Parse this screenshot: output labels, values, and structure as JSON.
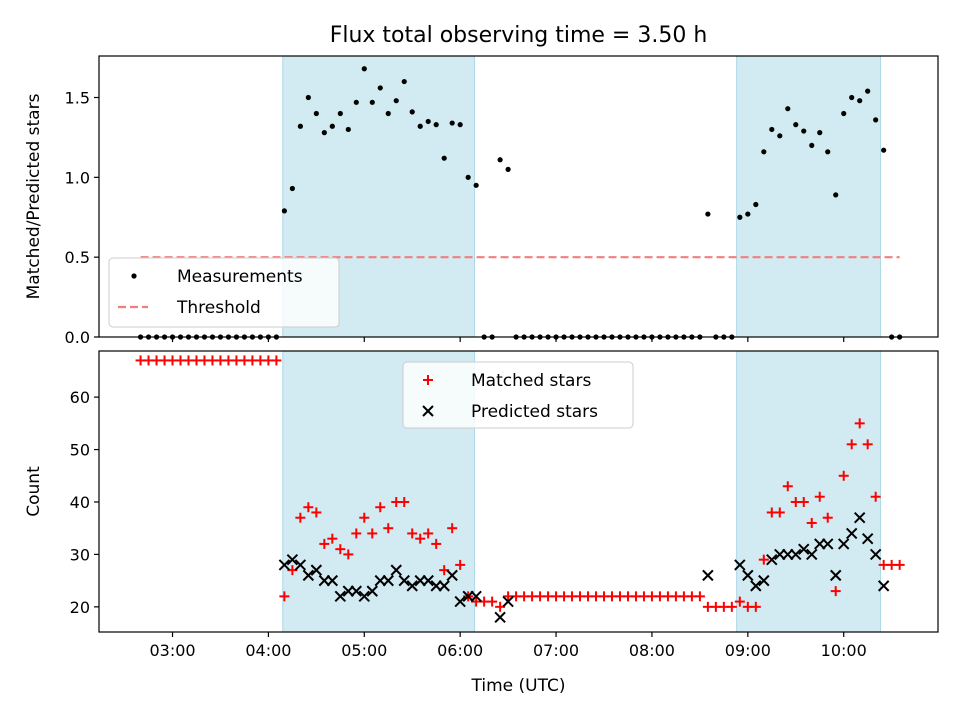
{
  "title": "Flux total observing time = 3.50 h",
  "chart_data": [
    {
      "type": "scatter",
      "title": "Flux total observing time = 3.50 h",
      "ylabel": "Matched/Predicted stars",
      "xlabel": "",
      "xlim": [
        "02:14",
        "10:59"
      ],
      "ylim": [
        0,
        1.76
      ],
      "yticks": [
        0.0,
        0.5,
        1.0,
        1.5
      ],
      "ytick_labels": [
        "0.0",
        "0.5",
        "1.0",
        "1.5"
      ],
      "grid": false,
      "legend": {
        "position": "lower-left",
        "entries": [
          "Measurements",
          "Threshold"
        ]
      },
      "shaded_spans": [
        [
          "04:09",
          "06:09"
        ],
        [
          "08:53",
          "10:23"
        ]
      ],
      "threshold": {
        "name": "Threshold",
        "value": 0.5,
        "x_range": [
          "02:40",
          "10:35"
        ],
        "color": "#f08080",
        "style": "dashed"
      },
      "series": [
        {
          "name": "Measurements",
          "marker": "dot",
          "color": "#000000",
          "points": [
            [
              "02:40",
              0
            ],
            [
              "02:45",
              0
            ],
            [
              "02:50",
              0
            ],
            [
              "02:55",
              0
            ],
            [
              "03:00",
              0
            ],
            [
              "03:05",
              0
            ],
            [
              "03:10",
              0
            ],
            [
              "03:15",
              0
            ],
            [
              "03:20",
              0
            ],
            [
              "03:25",
              0
            ],
            [
              "03:30",
              0
            ],
            [
              "03:35",
              0
            ],
            [
              "03:40",
              0
            ],
            [
              "03:45",
              0
            ],
            [
              "03:50",
              0
            ],
            [
              "03:55",
              0
            ],
            [
              "04:00",
              0
            ],
            [
              "04:05",
              0
            ],
            [
              "04:10",
              0.79
            ],
            [
              "04:15",
              0.93
            ],
            [
              "04:20",
              1.32
            ],
            [
              "04:25",
              1.5
            ],
            [
              "04:30",
              1.4
            ],
            [
              "04:35",
              1.28
            ],
            [
              "04:40",
              1.32
            ],
            [
              "04:45",
              1.4
            ],
            [
              "04:50",
              1.3
            ],
            [
              "04:55",
              1.47
            ],
            [
              "05:00",
              1.68
            ],
            [
              "05:05",
              1.47
            ],
            [
              "05:10",
              1.56
            ],
            [
              "05:15",
              1.4
            ],
            [
              "05:20",
              1.48
            ],
            [
              "05:25",
              1.6
            ],
            [
              "05:30",
              1.41
            ],
            [
              "05:35",
              1.32
            ],
            [
              "05:40",
              1.35
            ],
            [
              "05:45",
              1.33
            ],
            [
              "05:50",
              1.12
            ],
            [
              "05:55",
              1.34
            ],
            [
              "06:00",
              1.33
            ],
            [
              "06:05",
              1.0
            ],
            [
              "06:10",
              0.95
            ],
            [
              "06:15",
              0
            ],
            [
              "06:20",
              0
            ],
            [
              "06:25",
              1.11
            ],
            [
              "06:30",
              1.05
            ],
            [
              "06:35",
              0
            ],
            [
              "06:40",
              0
            ],
            [
              "06:45",
              0
            ],
            [
              "06:50",
              0
            ],
            [
              "06:55",
              0
            ],
            [
              "07:00",
              0
            ],
            [
              "07:05",
              0
            ],
            [
              "07:10",
              0
            ],
            [
              "07:15",
              0
            ],
            [
              "07:20",
              0
            ],
            [
              "07:25",
              0
            ],
            [
              "07:30",
              0
            ],
            [
              "07:35",
              0
            ],
            [
              "07:40",
              0
            ],
            [
              "07:45",
              0
            ],
            [
              "07:50",
              0
            ],
            [
              "07:55",
              0
            ],
            [
              "08:00",
              0
            ],
            [
              "08:05",
              0
            ],
            [
              "08:10",
              0
            ],
            [
              "08:15",
              0
            ],
            [
              "08:20",
              0
            ],
            [
              "08:25",
              0
            ],
            [
              "08:30",
              0
            ],
            [
              "08:35",
              0.77
            ],
            [
              "08:40",
              0
            ],
            [
              "08:45",
              0
            ],
            [
              "08:50",
              0
            ],
            [
              "08:55",
              0.75
            ],
            [
              "09:00",
              0.77
            ],
            [
              "09:05",
              0.83
            ],
            [
              "09:10",
              1.16
            ],
            [
              "09:15",
              1.3
            ],
            [
              "09:20",
              1.26
            ],
            [
              "09:25",
              1.43
            ],
            [
              "09:30",
              1.33
            ],
            [
              "09:35",
              1.29
            ],
            [
              "09:40",
              1.2
            ],
            [
              "09:45",
              1.28
            ],
            [
              "09:50",
              1.16
            ],
            [
              "09:55",
              0.89
            ],
            [
              "10:00",
              1.4
            ],
            [
              "10:05",
              1.5
            ],
            [
              "10:10",
              1.48
            ],
            [
              "10:15",
              1.54
            ],
            [
              "10:20",
              1.36
            ],
            [
              "10:25",
              1.17
            ],
            [
              "10:30",
              0
            ],
            [
              "10:35",
              0
            ]
          ]
        }
      ],
      "colors": {
        "span": "#add8e6",
        "text": "#000000"
      }
    },
    {
      "type": "scatter",
      "title": "",
      "xlabel": "Time (UTC)",
      "ylabel": "Count",
      "xlim": [
        "02:14",
        "10:59"
      ],
      "ylim": [
        15.2,
        68.8
      ],
      "xticks": [
        "03:00",
        "04:00",
        "05:00",
        "06:00",
        "07:00",
        "08:00",
        "09:00",
        "10:00"
      ],
      "yticks": [
        20,
        30,
        40,
        50,
        60
      ],
      "ytick_labels": [
        "20",
        "30",
        "40",
        "50",
        "60"
      ],
      "grid": false,
      "legend": {
        "position": "upper-center",
        "entries": [
          "Matched stars",
          "Predicted stars"
        ]
      },
      "shaded_spans": [
        [
          "04:09",
          "06:09"
        ],
        [
          "08:53",
          "10:23"
        ]
      ],
      "series": [
        {
          "name": "Matched stars",
          "marker": "plus",
          "color": "#ff0000",
          "points": [
            [
              "02:40",
              67
            ],
            [
              "02:45",
              67
            ],
            [
              "02:50",
              67
            ],
            [
              "02:55",
              67
            ],
            [
              "03:00",
              67
            ],
            [
              "03:05",
              67
            ],
            [
              "03:10",
              67
            ],
            [
              "03:15",
              67
            ],
            [
              "03:20",
              67
            ],
            [
              "03:25",
              67
            ],
            [
              "03:30",
              67
            ],
            [
              "03:35",
              67
            ],
            [
              "03:40",
              67
            ],
            [
              "03:45",
              67
            ],
            [
              "03:50",
              67
            ],
            [
              "03:55",
              67
            ],
            [
              "04:00",
              67
            ],
            [
              "04:05",
              67
            ],
            [
              "04:10",
              22
            ],
            [
              "04:15",
              27
            ],
            [
              "04:20",
              37
            ],
            [
              "04:25",
              39
            ],
            [
              "04:30",
              38
            ],
            [
              "04:35",
              32
            ],
            [
              "04:40",
              33
            ],
            [
              "04:45",
              31
            ],
            [
              "04:50",
              30
            ],
            [
              "04:55",
              34
            ],
            [
              "05:00",
              37
            ],
            [
              "05:05",
              34
            ],
            [
              "05:10",
              39
            ],
            [
              "05:15",
              35
            ],
            [
              "05:20",
              40
            ],
            [
              "05:25",
              40
            ],
            [
              "05:30",
              34
            ],
            [
              "05:35",
              33
            ],
            [
              "05:40",
              34
            ],
            [
              "05:45",
              32
            ],
            [
              "05:50",
              27
            ],
            [
              "05:55",
              35
            ],
            [
              "06:00",
              28
            ],
            [
              "06:05",
              22
            ],
            [
              "06:10",
              21
            ],
            [
              "06:15",
              21
            ],
            [
              "06:20",
              21
            ],
            [
              "06:25",
              20
            ],
            [
              "06:30",
              22
            ],
            [
              "06:35",
              22
            ],
            [
              "06:40",
              22
            ],
            [
              "06:45",
              22
            ],
            [
              "06:50",
              22
            ],
            [
              "06:55",
              22
            ],
            [
              "07:00",
              22
            ],
            [
              "07:05",
              22
            ],
            [
              "07:10",
              22
            ],
            [
              "07:15",
              22
            ],
            [
              "07:20",
              22
            ],
            [
              "07:25",
              22
            ],
            [
              "07:30",
              22
            ],
            [
              "07:35",
              22
            ],
            [
              "07:40",
              22
            ],
            [
              "07:45",
              22
            ],
            [
              "07:50",
              22
            ],
            [
              "07:55",
              22
            ],
            [
              "08:00",
              22
            ],
            [
              "08:05",
              22
            ],
            [
              "08:10",
              22
            ],
            [
              "08:15",
              22
            ],
            [
              "08:20",
              22
            ],
            [
              "08:25",
              22
            ],
            [
              "08:30",
              22
            ],
            [
              "08:35",
              20
            ],
            [
              "08:40",
              20
            ],
            [
              "08:45",
              20
            ],
            [
              "08:50",
              20
            ],
            [
              "08:55",
              21
            ],
            [
              "09:00",
              20
            ],
            [
              "09:05",
              20
            ],
            [
              "09:10",
              29
            ],
            [
              "09:15",
              38
            ],
            [
              "09:20",
              38
            ],
            [
              "09:25",
              43
            ],
            [
              "09:30",
              40
            ],
            [
              "09:35",
              40
            ],
            [
              "09:40",
              36
            ],
            [
              "09:45",
              41
            ],
            [
              "09:50",
              37
            ],
            [
              "09:55",
              23
            ],
            [
              "10:00",
              45
            ],
            [
              "10:05",
              51
            ],
            [
              "10:10",
              55
            ],
            [
              "10:15",
              51
            ],
            [
              "10:20",
              41
            ],
            [
              "10:25",
              28
            ],
            [
              "10:30",
              28
            ],
            [
              "10:35",
              28
            ]
          ]
        },
        {
          "name": "Predicted stars",
          "marker": "x",
          "color": "#000000",
          "points": [
            [
              "04:10",
              28
            ],
            [
              "04:15",
              29
            ],
            [
              "04:20",
              28
            ],
            [
              "04:25",
              26
            ],
            [
              "04:30",
              27
            ],
            [
              "04:35",
              25
            ],
            [
              "04:40",
              25
            ],
            [
              "04:45",
              22
            ],
            [
              "04:50",
              23
            ],
            [
              "04:55",
              23
            ],
            [
              "05:00",
              22
            ],
            [
              "05:05",
              23
            ],
            [
              "05:10",
              25
            ],
            [
              "05:15",
              25
            ],
            [
              "05:20",
              27
            ],
            [
              "05:25",
              25
            ],
            [
              "05:30",
              24
            ],
            [
              "05:35",
              25
            ],
            [
              "05:40",
              25
            ],
            [
              "05:45",
              24
            ],
            [
              "05:50",
              24
            ],
            [
              "05:55",
              26
            ],
            [
              "06:00",
              21
            ],
            [
              "06:05",
              22
            ],
            [
              "06:10",
              22
            ],
            [
              "06:25",
              18
            ],
            [
              "06:30",
              21
            ],
            [
              "08:35",
              26
            ],
            [
              "08:55",
              28
            ],
            [
              "09:00",
              26
            ],
            [
              "09:05",
              24
            ],
            [
              "09:10",
              25
            ],
            [
              "09:15",
              29
            ],
            [
              "09:20",
              30
            ],
            [
              "09:25",
              30
            ],
            [
              "09:30",
              30
            ],
            [
              "09:35",
              31
            ],
            [
              "09:40",
              30
            ],
            [
              "09:45",
              32
            ],
            [
              "09:50",
              32
            ],
            [
              "09:55",
              26
            ],
            [
              "10:00",
              32
            ],
            [
              "10:05",
              34
            ],
            [
              "10:10",
              37
            ],
            [
              "10:15",
              33
            ],
            [
              "10:20",
              30
            ],
            [
              "10:25",
              24
            ]
          ]
        }
      ],
      "colors": {
        "span": "#add8e6",
        "text": "#000000"
      }
    }
  ]
}
